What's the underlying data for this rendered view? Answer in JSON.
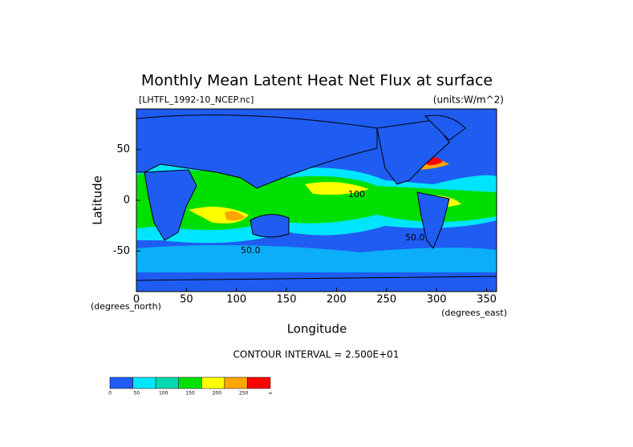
{
  "chart_data": {
    "type": "contour-map",
    "title": "Monthly Mean Latent Heat Net Flux at surface",
    "subtitle": "[LHTFL_1992-10_NCEP.nc]",
    "units": "(units:W/m^2)",
    "x_label": "Longitude",
    "y_label": "Latitude",
    "x_units": "(degrees_east)",
    "y_units": "(degrees_north)",
    "xlim": [
      0,
      360
    ],
    "ylim": [
      -90,
      90
    ],
    "xticks": [
      0,
      50,
      100,
      150,
      200,
      250,
      300,
      350
    ],
    "yticks": [
      -50,
      0,
      50
    ],
    "contour_note": "CONTOUR INTERVAL = 2.500E+01",
    "contour_labels": [
      "50.0",
      "50.0",
      "100"
    ],
    "colorbar": {
      "labels": [
        "0",
        "50",
        "100",
        "150",
        "200",
        "250",
        "∞"
      ],
      "colors": [
        "#1f5cf2",
        "#00e5ff",
        "#00d9b0",
        "#00e000",
        "#ffff00",
        "#ffa500",
        "#ff0000"
      ]
    }
  }
}
